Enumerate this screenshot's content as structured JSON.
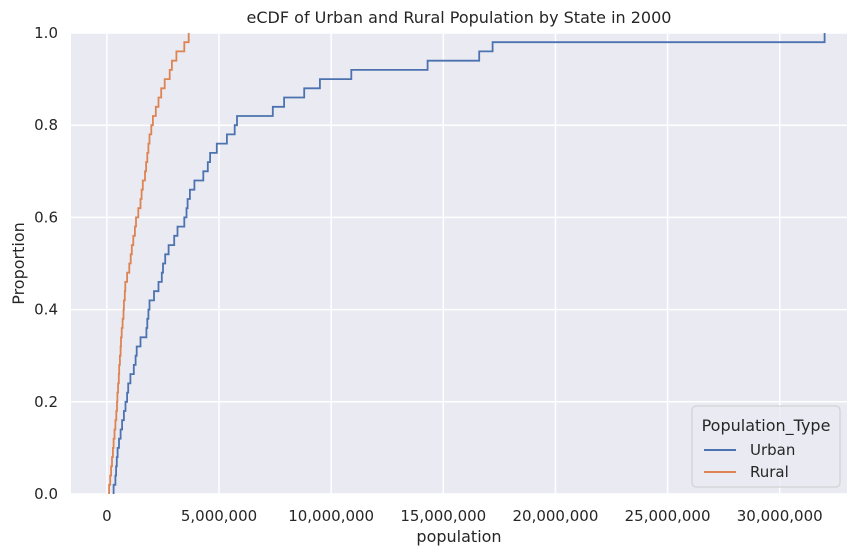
{
  "chart_data": {
    "type": "line",
    "title": "eCDF of Urban and Rural Population by State in 2000",
    "xlabel": "population",
    "ylabel": "Proportion",
    "xlim": [
      -1600000,
      33000000
    ],
    "ylim": [
      0,
      1
    ],
    "x_ticks": [
      0,
      5000000,
      10000000,
      15000000,
      20000000,
      25000000,
      30000000
    ],
    "x_tick_labels": [
      "0",
      "5,000,000",
      "10,000,000",
      "15,000,000",
      "20,000,000",
      "25,000,000",
      "30,000,000"
    ],
    "y_ticks": [
      0,
      0.2,
      0.4,
      0.6,
      0.8,
      1.0
    ],
    "y_tick_labels": [
      "0.0",
      "0.2",
      "0.4",
      "0.6",
      "0.8",
      "1.0"
    ],
    "grid": true,
    "legend": {
      "title": "Population_Type",
      "placement": "lower-right"
    },
    "series": [
      {
        "name": "Urban",
        "color": "#4c72b0",
        "values": [
          300000,
          380000,
          410000,
          440000,
          480000,
          540000,
          610000,
          680000,
          760000,
          830000,
          900000,
          950000,
          1050000,
          1200000,
          1280000,
          1330000,
          1500000,
          1760000,
          1800000,
          1850000,
          1900000,
          2100000,
          2300000,
          2450000,
          2500000,
          2600000,
          2750000,
          3000000,
          3150000,
          3450000,
          3550000,
          3600000,
          3700000,
          3900000,
          4300000,
          4500000,
          4600000,
          4900000,
          5350000,
          5700000,
          5800000,
          7400000,
          7900000,
          8800000,
          9500000,
          10900000,
          14300000,
          16600000,
          17200000,
          32000000
        ]
      },
      {
        "name": "Rural",
        "color": "#dd8452",
        "values": [
          100000,
          150000,
          190000,
          230000,
          270000,
          300000,
          340000,
          380000,
          420000,
          450000,
          470000,
          500000,
          530000,
          550000,
          580000,
          610000,
          630000,
          660000,
          700000,
          740000,
          760000,
          800000,
          820000,
          900000,
          1000000,
          1060000,
          1110000,
          1180000,
          1250000,
          1300000,
          1400000,
          1500000,
          1550000,
          1600000,
          1700000,
          1750000,
          1800000,
          1850000,
          1900000,
          1980000,
          2050000,
          2180000,
          2300000,
          2420000,
          2580000,
          2800000,
          2900000,
          3100000,
          3450000,
          3650000
        ]
      }
    ]
  }
}
